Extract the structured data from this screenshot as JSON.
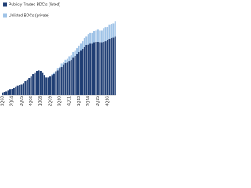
{
  "chart_data": {
    "type": "stacked-bar",
    "categories": [
      "1Q03",
      null,
      null,
      null,
      null,
      "2Q04",
      null,
      null,
      null,
      null,
      "3Q05",
      null,
      null,
      null,
      null,
      "4Q06",
      null,
      null,
      null,
      null,
      "1Q08",
      null,
      null,
      null,
      null,
      "2Q09",
      null,
      null,
      null,
      null,
      "3Q10",
      null,
      null,
      null,
      null,
      "4Q11",
      null,
      null,
      null,
      null,
      "1Q13",
      null,
      null,
      null,
      null,
      "2Q14",
      null,
      null,
      null,
      null,
      "3Q15",
      null,
      null,
      null,
      null,
      "4Q16",
      null,
      null,
      null,
      null
    ],
    "series": [
      {
        "name": "Publicly Traded BDC's (listed)",
        "color": "#1f3e74",
        "values": [
          2,
          3,
          4,
          5,
          6,
          7,
          8,
          9,
          10,
          11,
          12,
          13,
          15,
          17,
          19,
          21,
          23,
          25,
          27,
          28,
          27,
          25,
          22,
          20,
          20,
          21,
          22,
          24,
          26,
          28,
          30,
          32,
          34,
          36,
          37,
          38,
          40,
          42,
          44,
          46,
          48,
          50,
          52,
          54,
          56,
          57,
          58,
          58,
          59,
          60,
          60,
          59,
          59,
          60,
          61,
          62,
          63,
          64,
          65,
          66
        ]
      },
      {
        "name": "Unlisted BDCs (private)",
        "color": "#9fc3e7",
        "values": [
          0,
          0,
          0,
          0,
          0,
          0,
          0,
          0,
          0,
          0,
          0,
          0,
          0,
          0,
          0,
          0,
          0,
          0,
          0,
          0,
          0,
          0,
          0,
          0,
          0,
          0,
          1,
          1,
          1,
          2,
          2,
          3,
          3,
          4,
          4,
          5,
          5,
          6,
          6,
          7,
          7,
          8,
          9,
          10,
          10,
          11,
          12,
          12,
          13,
          13,
          14,
          14,
          14,
          15,
          15,
          15,
          16,
          16,
          16,
          17
        ]
      }
    ],
    "ylim": [
      0,
      100
    ],
    "legend": "upper left"
  }
}
